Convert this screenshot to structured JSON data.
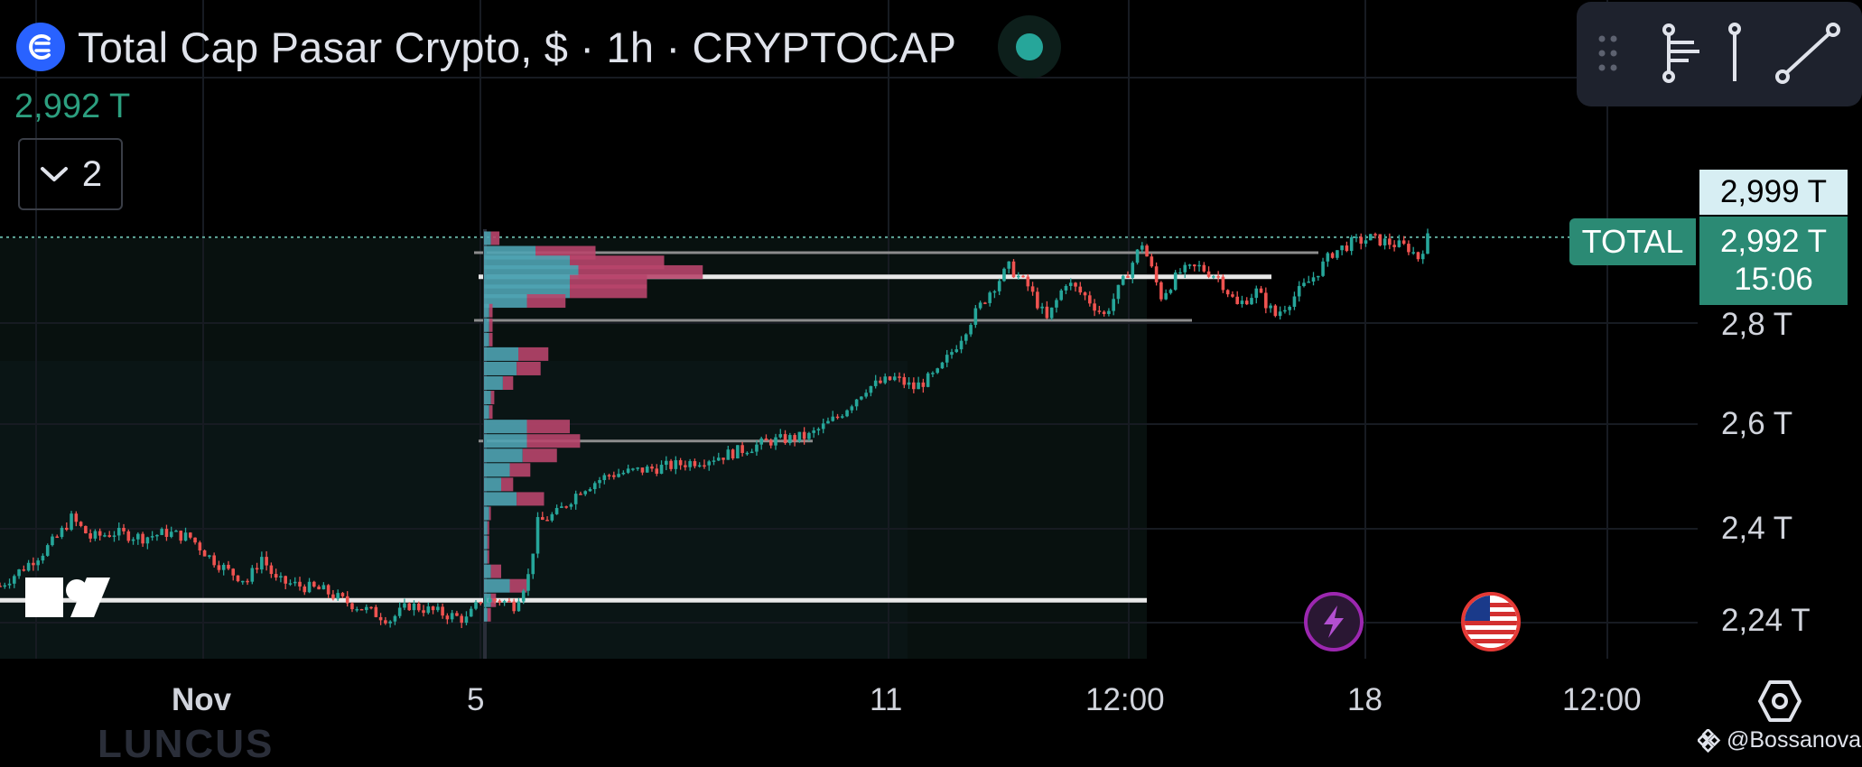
{
  "header": {
    "title": "Total Cap Pasar Crypto, $ · 1h · CRYPTOCAP",
    "last_price": "2,992 T",
    "indicators_count": "2"
  },
  "price_scale": {
    "ticks": [
      "2,8 T",
      "2,6 T",
      "2,4 T",
      "2,24 T"
    ],
    "high_label": "2,999 T",
    "symbol_label": "TOTAL",
    "current_price": "2,992 T",
    "countdown": "15:06"
  },
  "time_axis": {
    "ticks": [
      "Nov",
      "5",
      "11",
      "12:00",
      "18",
      "12:00"
    ]
  },
  "watermark": "@Bossanova",
  "background_text": "LUNCUS",
  "icons": {
    "logo": "crypto-cap-logo-icon",
    "status": "market-status-dot-icon",
    "collapse": "chevron-down-icon",
    "tools": [
      "drag-handle-icon",
      "fib-tool-icon",
      "vertical-line-tool-icon",
      "trend-line-tool-icon"
    ],
    "lightning": "lightning-icon",
    "flag": "us-flag-icon",
    "settings": "settings-hex-icon"
  },
  "colors": {
    "up": "#26a69a",
    "down": "#ef5350",
    "vp_up": "#4fa3b3",
    "vp_down": "#b8456b",
    "accent": "#2b8a74",
    "brand": "#2962ff"
  },
  "chart_data": {
    "type": "candlestick",
    "title": "Total Cap Pasar Crypto, $ · 1h · CRYPTOCAP",
    "symbol": "TOTAL",
    "interval": "1h",
    "ylim": [
      2.16,
      3.05
    ],
    "y_unit": "T",
    "y_ticks": [
      2.8,
      2.6,
      2.4,
      2.24
    ],
    "x_ticks": [
      "Nov",
      "5",
      "11",
      "12:00",
      "18",
      "12:00"
    ],
    "x_tick_index": [
      0,
      97,
      202,
      250,
      305,
      362
    ],
    "last_price": 2.992,
    "high_marker": 2.999,
    "price_path": [
      [
        0,
        2.27
      ],
      [
        4,
        2.3
      ],
      [
        9,
        2.34
      ],
      [
        12,
        2.37
      ],
      [
        15,
        2.41
      ],
      [
        19,
        2.37
      ],
      [
        24,
        2.38
      ],
      [
        30,
        2.37
      ],
      [
        35,
        2.38
      ],
      [
        40,
        2.37
      ],
      [
        44,
        2.33
      ],
      [
        48,
        2.3
      ],
      [
        52,
        2.28
      ],
      [
        55,
        2.33
      ],
      [
        58,
        2.28
      ],
      [
        63,
        2.27
      ],
      [
        68,
        2.26
      ],
      [
        72,
        2.24
      ],
      [
        77,
        2.22
      ],
      [
        82,
        2.2
      ],
      [
        86,
        2.23
      ],
      [
        90,
        2.22
      ],
      [
        94,
        2.21
      ],
      [
        98,
        2.2
      ],
      [
        101,
        2.24
      ],
      [
        105,
        2.24
      ],
      [
        108,
        2.23
      ],
      [
        111,
        2.29
      ],
      [
        113,
        2.4
      ],
      [
        117,
        2.42
      ],
      [
        122,
        2.47
      ],
      [
        128,
        2.5
      ],
      [
        135,
        2.51
      ],
      [
        142,
        2.52
      ],
      [
        152,
        2.54
      ],
      [
        162,
        2.57
      ],
      [
        170,
        2.58
      ],
      [
        176,
        2.62
      ],
      [
        182,
        2.68
      ],
      [
        188,
        2.7
      ],
      [
        192,
        2.68
      ],
      [
        197,
        2.71
      ],
      [
        201,
        2.77
      ],
      [
        204,
        2.82
      ],
      [
        208,
        2.88
      ],
      [
        212,
        2.93
      ],
      [
        216,
        2.89
      ],
      [
        220,
        2.82
      ],
      [
        224,
        2.9
      ],
      [
        228,
        2.87
      ],
      [
        232,
        2.83
      ],
      [
        236,
        2.9
      ],
      [
        240,
        2.98
      ],
      [
        244,
        2.87
      ],
      [
        248,
        2.92
      ],
      [
        252,
        2.93
      ],
      [
        256,
        2.91
      ],
      [
        260,
        2.85
      ],
      [
        264,
        2.88
      ],
      [
        268,
        2.83
      ],
      [
        272,
        2.87
      ],
      [
        276,
        2.91
      ],
      [
        280,
        2.96
      ],
      [
        284,
        2.98
      ],
      [
        288,
        2.99
      ],
      [
        292,
        2.98
      ],
      [
        296,
        2.97
      ],
      [
        298,
        2.95
      ],
      [
        300,
        2.99
      ]
    ],
    "horizontal_lines": [
      2.24,
      2.57,
      2.82,
      2.91,
      2.96
    ],
    "volume_profile": {
      "price_rows": [
        2.99,
        2.96,
        2.94,
        2.92,
        2.9,
        2.88,
        2.86,
        2.84,
        2.81,
        2.78,
        2.75,
        2.72,
        2.69,
        2.66,
        2.63,
        2.6,
        2.57,
        2.54,
        2.51,
        2.48,
        2.45,
        2.42,
        2.39,
        2.36,
        2.33,
        2.3,
        2.27,
        2.24,
        2.21
      ],
      "up_volume": [
        8,
        60,
        100,
        110,
        100,
        100,
        50,
        6,
        6,
        6,
        40,
        38,
        22,
        8,
        6,
        50,
        50,
        45,
        30,
        20,
        38,
        6,
        4,
        4,
        4,
        8,
        30,
        8,
        4
      ],
      "down_volume": [
        10,
        70,
        110,
        145,
        90,
        90,
        45,
        4,
        4,
        4,
        35,
        28,
        12,
        4,
        4,
        50,
        62,
        40,
        24,
        14,
        32,
        2,
        2,
        2,
        2,
        12,
        20,
        6,
        4
      ]
    }
  }
}
